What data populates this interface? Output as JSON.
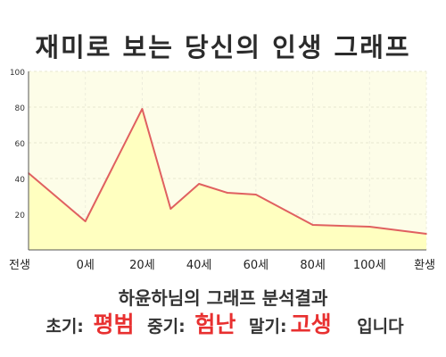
{
  "title": "재미로 보는 당신의 인생 그래프",
  "summary": "하윤하님의 그래프 분석결과",
  "result": {
    "early_label": "초기:",
    "early_value": "평범",
    "middle_label": "중기:",
    "middle_value": "험난",
    "late_label": "말기:",
    "late_value": "고생",
    "tail": "입니다"
  },
  "colors": {
    "line": "#e06060",
    "fill": "#ffffc0",
    "plot_bg": "#fdfde8",
    "accent": "#e83030"
  },
  "chart_data": {
    "type": "area",
    "title": "재미로 보는 당신의 인생 그래프",
    "xlabel": "",
    "ylabel": "",
    "x_ticks": [
      "전생",
      "0세",
      "20세",
      "40세",
      "60세",
      "80세",
      "100세",
      "환생"
    ],
    "y_ticks": [
      20,
      40,
      60,
      80,
      100
    ],
    "ylim": [
      0,
      100
    ],
    "grid": true,
    "series": [
      {
        "points": [
          {
            "x": "전생",
            "y": 43
          },
          {
            "x": "0세",
            "y": 16
          },
          {
            "x": "20세",
            "y": 79
          },
          {
            "x": "30세",
            "y": 23
          },
          {
            "x": "40세",
            "y": 37
          },
          {
            "x": "50세",
            "y": 32
          },
          {
            "x": "60세",
            "y": 31
          },
          {
            "x": "80세",
            "y": 14
          },
          {
            "x": "100세",
            "y": 13
          },
          {
            "x": "환생",
            "y": 9
          }
        ]
      }
    ]
  }
}
